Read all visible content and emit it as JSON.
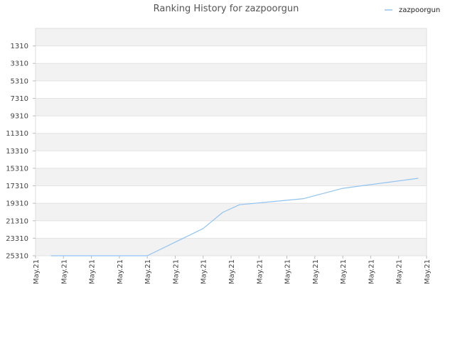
{
  "chart_data": {
    "type": "line",
    "title": "Ranking History for zazpoorgun",
    "xlabel": "",
    "ylabel": "",
    "legend_position": "top-right",
    "grid": true,
    "y_reversed": true,
    "ylim": [
      -690,
      25310
    ],
    "y_ticks": [
      1310,
      3310,
      5310,
      7310,
      9310,
      11310,
      13310,
      15310,
      17310,
      19310,
      21310,
      23310,
      25310
    ],
    "x_ticks": [
      "May.21",
      "May.21",
      "May.21",
      "May.21",
      "May.21",
      "May.21",
      "May.21",
      "May.21",
      "May.21",
      "May.21",
      "May.21",
      "May.21",
      "May.21",
      "May.21",
      "May.21"
    ],
    "x_range": [
      0,
      14
    ],
    "series": [
      {
        "name": "zazpoorgun",
        "color": "#91c4f2",
        "x": [
          0.55,
          4.0,
          6.0,
          6.7,
          7.3,
          9.6,
          11.0,
          13.7
        ],
        "y": [
          25310,
          25310,
          22200,
          20350,
          19480,
          18780,
          17600,
          16450
        ]
      }
    ]
  }
}
